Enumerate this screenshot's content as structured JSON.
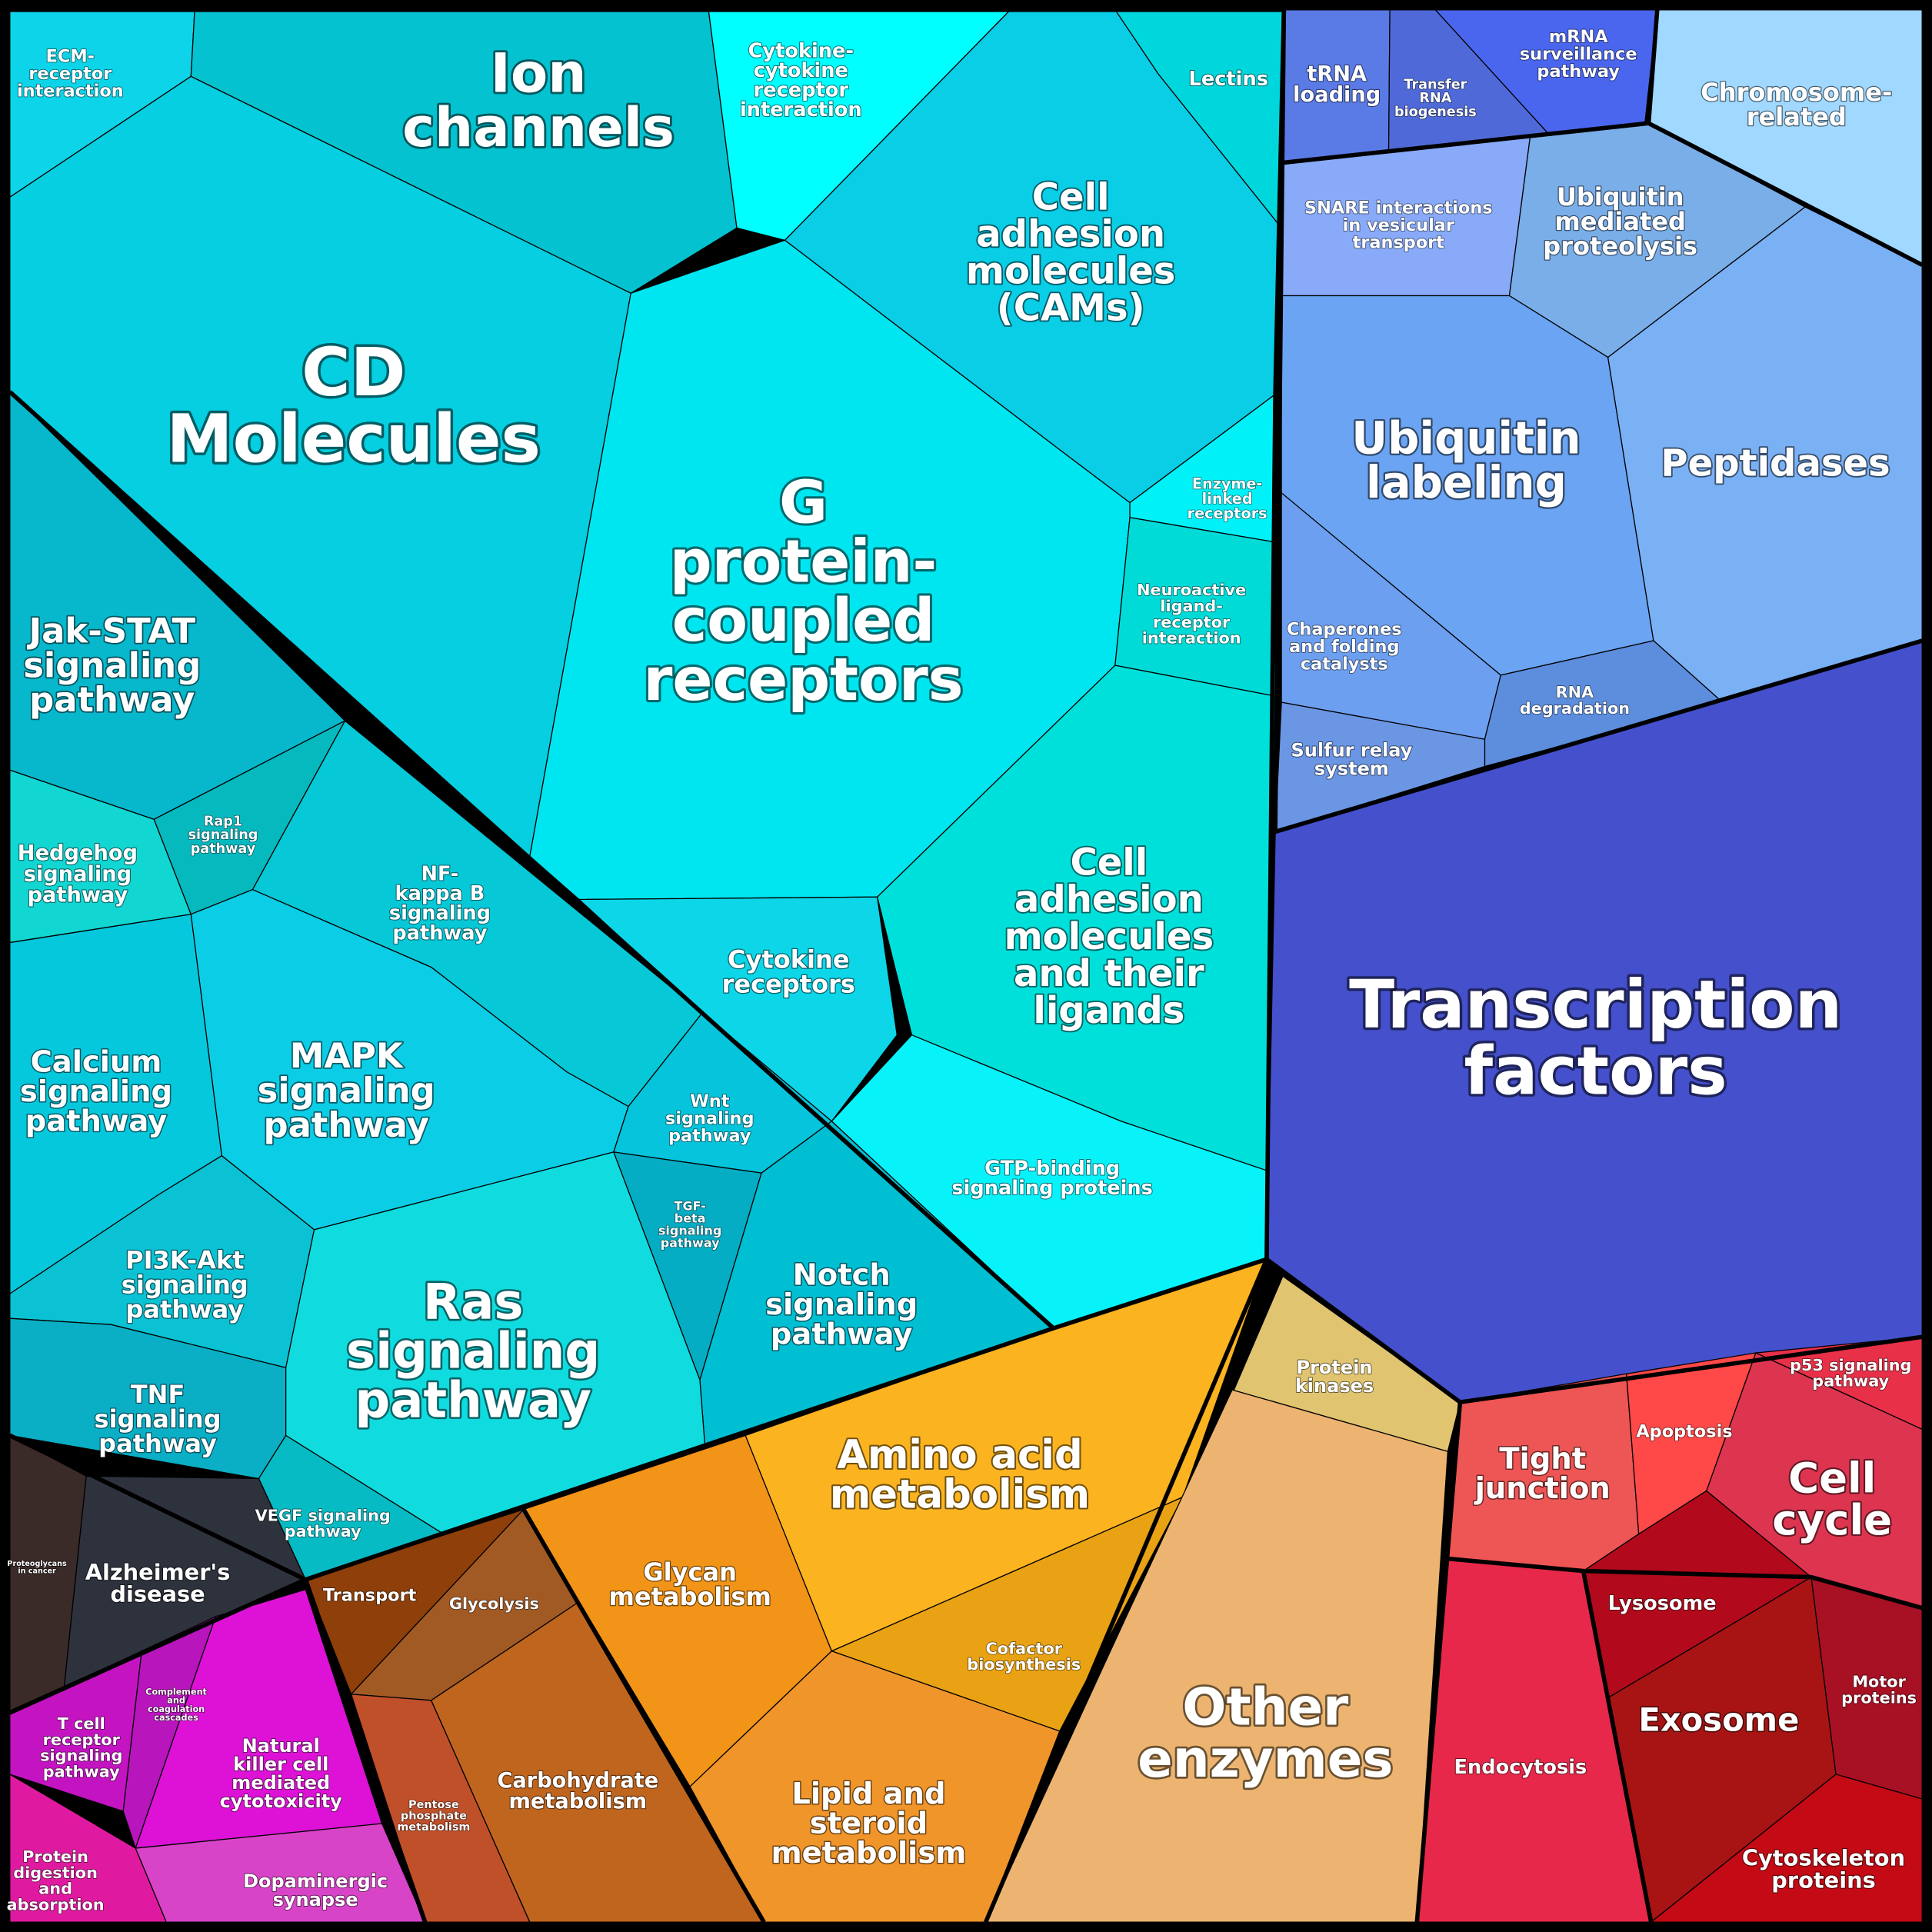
{
  "regions": [
    {
      "label": [
        "ECM-",
        "receptor",
        "interaction"
      ]
    },
    {
      "label": [
        "Ion",
        "channels"
      ]
    },
    {
      "label": [
        "Cytokine-",
        "cytokine",
        "receptor",
        "interaction"
      ]
    },
    {
      "label": [
        "Lectins"
      ]
    },
    {
      "label": [
        "Cell",
        "adhesion",
        "molecules",
        "(CAMs)"
      ]
    },
    {
      "label": [
        "CD",
        "Molecules"
      ]
    },
    {
      "label": [
        "G",
        "protein-",
        "coupled",
        "receptors"
      ]
    },
    {
      "label": [
        "Enzyme-",
        "linked",
        "receptors"
      ]
    },
    {
      "label": [
        "Neuroactive",
        "ligand-",
        "receptor",
        "interaction"
      ]
    },
    {
      "label": [
        "Cell",
        "adhesion",
        "molecules",
        "and their",
        "ligands"
      ]
    },
    {
      "label": [
        "Cytokine",
        "receptors"
      ]
    },
    {
      "label": [
        "GTP-binding",
        "signaling proteins"
      ]
    },
    {
      "label": [
        "Jak-STAT",
        "signaling",
        "pathway"
      ]
    },
    {
      "label": [
        "Hedgehog",
        "signaling",
        "pathway"
      ]
    },
    {
      "label": [
        "Rap1",
        "signaling",
        "pathway"
      ]
    },
    {
      "label": [
        "NF-",
        "kappa B",
        "signaling",
        "pathway"
      ]
    },
    {
      "label": [
        "Calcium",
        "signaling",
        "pathway"
      ]
    },
    {
      "label": [
        "MAPK",
        "signaling",
        "pathway"
      ]
    },
    {
      "label": [
        "Wnt",
        "signaling",
        "pathway"
      ]
    },
    {
      "label": [
        "PI3K-Akt",
        "signaling",
        "pathway"
      ]
    },
    {
      "label": [
        "TNF",
        "signaling",
        "pathway"
      ]
    },
    {
      "label": [
        "TGF-",
        "beta",
        "signaling",
        "pathway"
      ]
    },
    {
      "label": [
        "Notch",
        "signaling",
        "pathway"
      ]
    },
    {
      "label": [
        "Ras",
        "signaling",
        "pathway"
      ]
    },
    {
      "label": [
        "VEGF signaling",
        "pathway"
      ]
    },
    {
      "label": [
        "Proteoglycans",
        "in cancer"
      ]
    },
    {
      "label": [
        "Alzheimer's",
        "disease"
      ]
    },
    {
      "label": [
        "Transport"
      ]
    },
    {
      "label": [
        "Glycolysis"
      ]
    },
    {
      "label": [
        "Glycan",
        "metabolism"
      ]
    },
    {
      "label": [
        "Amino acid",
        "metabolism"
      ]
    },
    {
      "label": [
        "Cofactor",
        "biosynthesis"
      ]
    },
    {
      "label": [
        "Protein",
        "kinases"
      ]
    },
    {
      "label": [
        "Other",
        "enzymes"
      ]
    },
    {
      "label": [
        "T cell",
        "receptor",
        "signaling",
        "pathway"
      ]
    },
    {
      "label": [
        "Complement",
        "and",
        "coagulation",
        "cascades"
      ]
    },
    {
      "label": [
        "Natural",
        "killer cell",
        "mediated",
        "cytotoxicity"
      ]
    },
    {
      "label": [
        "Pentose",
        "phosphate",
        "metabolism"
      ]
    },
    {
      "label": [
        "Carbohydrate",
        "metabolism"
      ]
    },
    {
      "label": [
        "Lipid and",
        "steroid",
        "metabolism"
      ]
    },
    {
      "label": [
        "Protein",
        "digestion",
        "and",
        "absorption"
      ]
    },
    {
      "label": [
        "Dopaminergic",
        "synapse"
      ]
    },
    {
      "label": [
        "tRNA",
        "loading"
      ]
    },
    {
      "label": [
        "Transfer",
        "RNA",
        "biogenesis"
      ]
    },
    {
      "label": [
        "mRNA",
        "surveillance",
        "pathway"
      ]
    },
    {
      "label": [
        "Chromosome-",
        "related"
      ]
    },
    {
      "label": [
        "SNARE interactions",
        "in vesicular",
        "transport"
      ]
    },
    {
      "label": [
        "Ubiquitin",
        "mediated",
        "proteolysis"
      ]
    },
    {
      "label": [
        "Ubiquitin",
        "labeling"
      ]
    },
    {
      "label": [
        "Peptidases"
      ]
    },
    {
      "label": [
        "Chaperones",
        "and folding",
        "catalysts"
      ]
    },
    {
      "label": [
        "RNA",
        "degradation"
      ]
    },
    {
      "label": [
        "Sulfur relay",
        "system"
      ]
    },
    {
      "label": [
        "Transcription",
        "factors"
      ]
    },
    {
      "label": [
        "Tight",
        "junction"
      ]
    },
    {
      "label": [
        "Apoptosis"
      ]
    },
    {
      "label": [
        "p53 signaling",
        "pathway"
      ]
    },
    {
      "label": [
        "Cell",
        "cycle"
      ]
    },
    {
      "label": [
        "Lysosome"
      ]
    },
    {
      "label": [
        "Exosome"
      ]
    },
    {
      "label": [
        "Motor",
        "proteins"
      ]
    },
    {
      "label": [
        "Cytoskeleton",
        "proteins"
      ]
    },
    {
      "label": [
        "Endocytosis"
      ]
    }
  ]
}
